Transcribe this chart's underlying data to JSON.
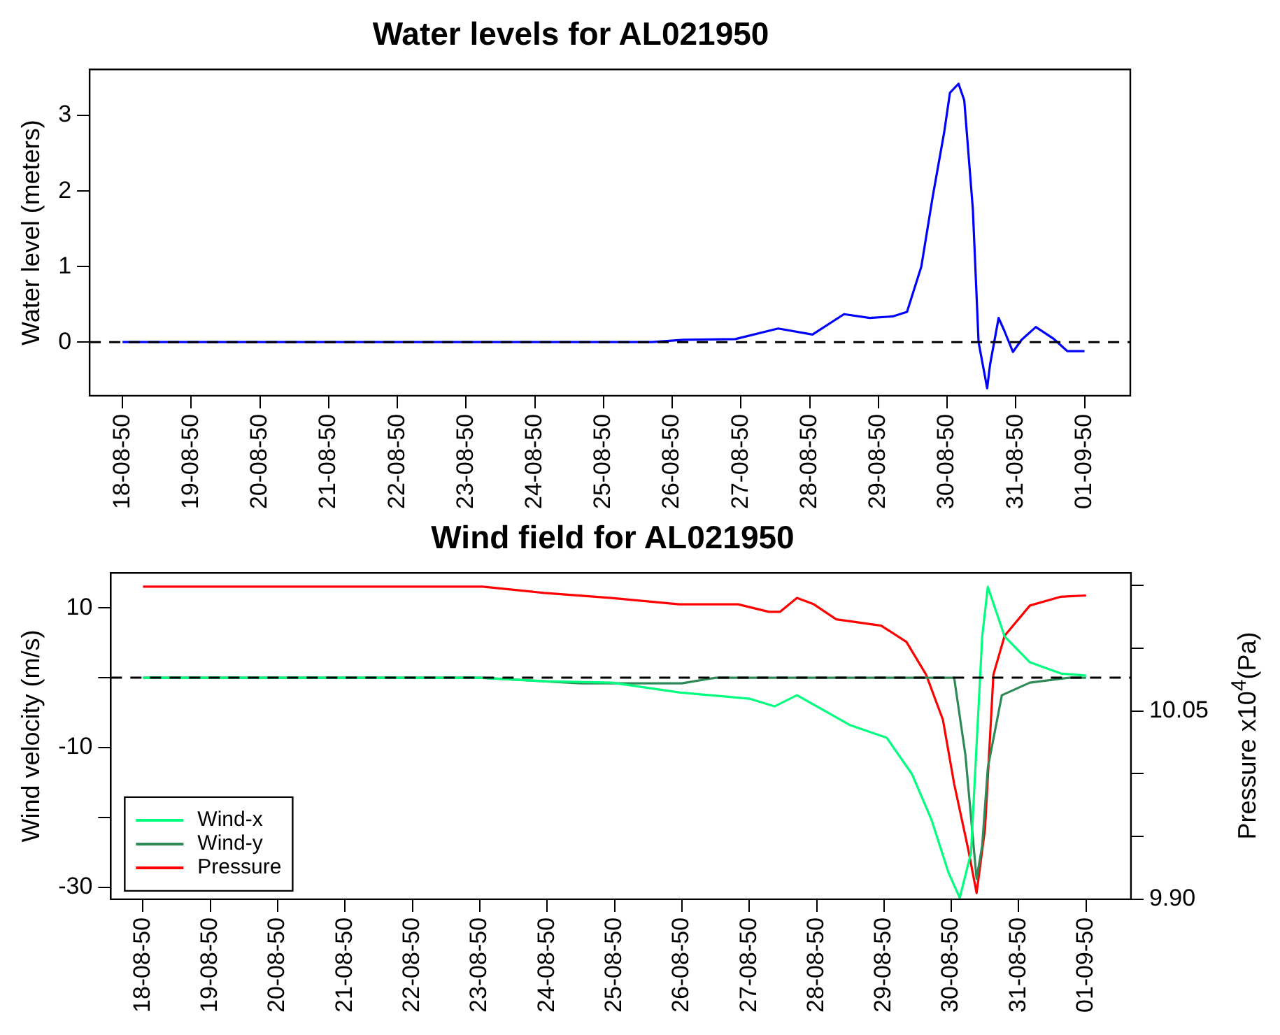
{
  "chart_data": [
    {
      "type": "line",
      "title": "Water levels for AL021950",
      "ylabel": "Water level (meters)",
      "xlim": [
        "1950-08-17T12:30",
        "1950-09-01T16:00"
      ],
      "xticks": [
        {
          "value": "1950-08-18",
          "label": "18-08-50"
        },
        {
          "value": "1950-08-19",
          "label": "19-08-50"
        },
        {
          "value": "1950-08-20",
          "label": "20-08-50"
        },
        {
          "value": "1950-08-21",
          "label": "21-08-50"
        },
        {
          "value": "1950-08-22",
          "label": "22-08-50"
        },
        {
          "value": "1950-08-23",
          "label": "23-08-50"
        },
        {
          "value": "1950-08-24",
          "label": "24-08-50"
        },
        {
          "value": "1950-08-25",
          "label": "25-08-50"
        },
        {
          "value": "1950-08-26",
          "label": "26-08-50"
        },
        {
          "value": "1950-08-27",
          "label": "27-08-50"
        },
        {
          "value": "1950-08-28",
          "label": "28-08-50"
        },
        {
          "value": "1950-08-29",
          "label": "29-08-50"
        },
        {
          "value": "1950-08-30",
          "label": "30-08-50"
        },
        {
          "value": "1950-08-31",
          "label": "31-08-50"
        },
        {
          "value": "1950-09-01",
          "label": "01-09-50"
        }
      ],
      "ylim": [
        -0.71,
        3.61
      ],
      "yticks": [
        0,
        1,
        2,
        3
      ],
      "grid": false,
      "marker": "none",
      "line_style": "solid",
      "ref_lines": [
        {
          "axis": "y",
          "value": 0,
          "color": "#000000",
          "line_style": "dashed"
        }
      ],
      "series": [
        {
          "color": "#0000ff",
          "x": [
            "1950-08-18",
            "1950-08-25T17:00",
            "1950-08-26T04:00",
            "1950-08-26T22:00",
            "1950-08-27T13:00",
            "1950-08-28T01:00",
            "1950-08-28T12:00",
            "1950-08-28T21:00",
            "1950-08-29T05:00",
            "1950-08-29T10:00",
            "1950-08-29T15:00",
            "1950-08-29T19:00",
            "1950-08-29T23:00",
            "1950-08-30T01:00",
            "1950-08-30T04:00",
            "1950-08-30T06:00",
            "1950-08-30T09:00",
            "1950-08-30T11:00",
            "1950-08-30T14:00",
            "1950-08-30T15:00",
            "1950-08-30T18:00",
            "1950-08-30T20:00",
            "1950-08-30T23:00",
            "1950-08-31T02:00",
            "1950-08-31T07:00",
            "1950-08-31T13:00",
            "1950-08-31T18:00",
            "1950-09-01"
          ],
          "values": [
            0,
            0,
            0.03,
            0.04,
            0.18,
            0.1,
            0.37,
            0.32,
            0.34,
            0.4,
            1.0,
            1.93,
            2.78,
            3.3,
            3.42,
            3.2,
            1.76,
            0,
            -0.61,
            -0.3,
            0.32,
            0.15,
            -0.13,
            0.03,
            0.2,
            0.05,
            -0.12,
            -0.12
          ]
        }
      ]
    },
    {
      "type": "line",
      "title": "Wind field for AL021950",
      "ylabel": "Wind velocity (m/s)",
      "y2label": "Pressure x10$^{4}$(Pa)",
      "xlim": [
        "1950-08-17T12:30",
        "1950-09-01T16:00"
      ],
      "xticks": [
        {
          "value": "1950-08-18",
          "label": "18-08-50"
        },
        {
          "value": "1950-08-19",
          "label": "19-08-50"
        },
        {
          "value": "1950-08-20",
          "label": "20-08-50"
        },
        {
          "value": "1950-08-21",
          "label": "21-08-50"
        },
        {
          "value": "1950-08-22",
          "label": "22-08-50"
        },
        {
          "value": "1950-08-23",
          "label": "23-08-50"
        },
        {
          "value": "1950-08-24",
          "label": "24-08-50"
        },
        {
          "value": "1950-08-25",
          "label": "25-08-50"
        },
        {
          "value": "1950-08-26",
          "label": "26-08-50"
        },
        {
          "value": "1950-08-27",
          "label": "27-08-50"
        },
        {
          "value": "1950-08-28",
          "label": "28-08-50"
        },
        {
          "value": "1950-08-29",
          "label": "29-08-50"
        },
        {
          "value": "1950-08-30",
          "label": "30-08-50"
        },
        {
          "value": "1950-08-31",
          "label": "31-08-50"
        },
        {
          "value": "1950-09-01",
          "label": "01-09-50"
        }
      ],
      "ylim": [
        -31.7,
        15
      ],
      "yticks": [
        10,
        {
          "value": 0,
          "label": null
        },
        -10,
        {
          "value": -20,
          "label": null
        },
        -30
      ],
      "y2lim": [
        9.9,
        10.16
      ],
      "y2ticks": [
        {
          "value": 9.9,
          "label": "9.90"
        },
        {
          "value": 9.95,
          "label": null
        },
        {
          "value": 10.0,
          "label": null
        },
        10.05,
        {
          "value": 10.1,
          "label": null
        },
        {
          "value": 10.15,
          "label": null
        }
      ],
      "grid": false,
      "marker": "none",
      "line_style": "solid",
      "legend": "bottom left",
      "ref_lines": [
        {
          "axis": "y",
          "value": 0,
          "color": "#000000",
          "line_style": "dashed"
        }
      ],
      "series": [
        {
          "name": "Wind-x",
          "color": "#00ff7f",
          "x": [
            "1950-08-18",
            "1950-08-23",
            "1950-08-23T23:00",
            "1950-08-24T23:00",
            "1950-08-25T23:00",
            "1950-08-27",
            "1950-08-27T09:00",
            "1950-08-27T17:00",
            "1950-08-28T12:00",
            "1950-08-29T01:00",
            "1950-08-29T10:00",
            "1950-08-29T17:00",
            "1950-08-29T23:00",
            "1950-08-30T03:00",
            "1950-08-30T07:00",
            "1950-08-30T11:00",
            "1950-08-30T13:00",
            "1950-08-30T19:00",
            "1950-08-31T04:00",
            "1950-08-31T15:00",
            "1950-09-01"
          ],
          "values": [
            0,
            0,
            -0.5,
            -0.7,
            -2.1,
            -3,
            -4.1,
            -2.5,
            -6.8,
            -8.6,
            -13.8,
            -20.4,
            -27.9,
            -31.5,
            -25.1,
            5.9,
            13,
            5.9,
            2.2,
            0.6,
            0.3
          ]
        },
        {
          "name": "Wind-y",
          "color": "#2e8b57",
          "x": [
            "1950-08-18",
            "1950-08-23",
            "1950-08-24T12:00",
            "1950-08-26",
            "1950-08-26T12:00",
            "1950-08-30T01:00",
            "1950-08-30T05:00",
            "1950-08-30T09:00",
            "1950-08-30T11:00",
            "1950-08-30T13:00",
            "1950-08-30T18:00",
            "1950-08-31T04:00",
            "1950-08-31T18:00",
            "1950-09-01"
          ],
          "values": [
            0,
            0,
            -0.8,
            -0.8,
            0,
            0,
            -11,
            -28.8,
            -24,
            -12.9,
            -2.5,
            -0.7,
            0,
            0
          ]
        },
        {
          "name": "Pressure",
          "color": "#ff0000",
          "axis": "y2",
          "x": [
            "1950-08-18",
            "1950-08-23T01:00",
            "1950-08-23T23:00",
            "1950-08-24T23:00",
            "1950-08-25T23:00",
            "1950-08-26T20:00",
            "1950-08-27T07:00",
            "1950-08-27T11:00",
            "1950-08-27T17:00",
            "1950-08-27T23:00",
            "1950-08-28T07:00",
            "1950-08-28T23:00",
            "1950-08-29T08:00",
            "1950-08-29T15:00",
            "1950-08-29T21:00",
            "1950-08-30T01:00",
            "1950-08-30T06:00",
            "1950-08-30T09:00",
            "1950-08-30T12:00",
            "1950-08-30T15:00",
            "1950-08-30T19:00",
            "1950-08-31T04:00",
            "1950-08-31T15:00",
            "1950-09-01"
          ],
          "values": [
            10.149,
            10.149,
            10.144,
            10.14,
            10.135,
            10.135,
            10.129,
            10.129,
            10.14,
            10.135,
            10.123,
            10.118,
            10.105,
            10.079,
            10.043,
            9.992,
            9.94,
            9.905,
            9.956,
            10.079,
            10.11,
            10.134,
            10.141,
            10.142
          ]
        }
      ]
    }
  ]
}
